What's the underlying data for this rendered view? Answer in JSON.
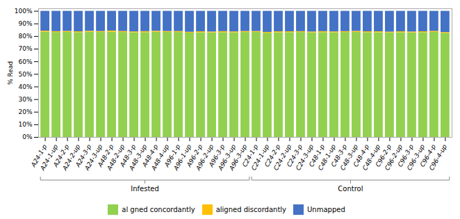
{
  "chart_data": {
    "type": "bar",
    "stacked": true,
    "ylabel": "% Read",
    "categories": [
      "A24-1-p",
      "A24-1-up",
      "A24-2-p",
      "A24-2-up",
      "A24-3-p",
      "A24-3-up",
      "A48-2-p",
      "A48-2-up",
      "A48-3-p",
      "A48-3-up",
      "A48-4-p",
      "A48-4-up",
      "A96-1-p",
      "A96-1-up",
      "A96-2-p",
      "A96-2-up",
      "A96-3-p",
      "A96-3-up",
      "A96-3-up",
      "C24-1-p",
      "C24-1-up",
      "C24-2-p",
      "C24-2-up",
      "C24-3-p",
      "C24-3-up",
      "C48-1-p",
      "C48-1-up",
      "C48-3-p",
      "C48-3-up",
      "C48-4-p",
      "C48-4-up",
      "C96-2-p",
      "C96-2-up",
      "C96-3-p",
      "C96-3-up",
      "C96-4-p",
      "C96-4-up"
    ],
    "series": [
      {
        "name": "al gned concordantly",
        "color": "#92D050",
        "values": [
          83.5,
          83.2,
          83.3,
          83.1,
          83.4,
          83.3,
          83.5,
          83.2,
          83.0,
          83.1,
          83.4,
          83.3,
          83.2,
          82.7,
          83.0,
          82.9,
          83.1,
          83.0,
          83.2,
          83.3,
          82.6,
          83.0,
          83.1,
          83.2,
          82.9,
          83.1,
          83.0,
          83.2,
          83.3,
          83.1,
          83.0,
          82.8,
          83.0,
          82.9,
          83.1,
          83.3,
          82.5
        ]
      },
      {
        "name": "aligned discordantly",
        "color": "#FFC000",
        "values": [
          0.8,
          0.7,
          0.8,
          0.7,
          0.8,
          0.7,
          0.9,
          0.8,
          0.7,
          0.8,
          0.8,
          0.7,
          0.8,
          0.7,
          0.8,
          0.7,
          0.8,
          0.7,
          0.8,
          0.7,
          0.7,
          0.8,
          0.7,
          0.7,
          0.7,
          0.8,
          0.7,
          0.7,
          0.8,
          0.7,
          0.8,
          0.7,
          0.8,
          0.7,
          0.7,
          0.8,
          0.7
        ]
      },
      {
        "name": "Unmapped",
        "color": "#4472C4",
        "values": [
          15.7,
          16.1,
          15.9,
          16.2,
          15.8,
          16.0,
          15.6,
          16.0,
          16.3,
          16.1,
          15.8,
          16.0,
          16.0,
          16.6,
          16.2,
          16.4,
          16.1,
          16.3,
          16.0,
          16.0,
          16.7,
          16.2,
          16.2,
          16.1,
          16.4,
          16.1,
          16.3,
          16.1,
          15.9,
          16.2,
          16.2,
          16.5,
          16.2,
          16.4,
          16.2,
          15.9,
          16.8
        ]
      }
    ],
    "ylim": [
      0,
      102
    ],
    "yticks": [
      {
        "value": 0,
        "label": "0%"
      },
      {
        "value": 10,
        "label": "10%"
      },
      {
        "value": 20,
        "label": "20%"
      },
      {
        "value": 30,
        "label": "30%"
      },
      {
        "value": 40,
        "label": "40%"
      },
      {
        "value": 50,
        "label": "50%"
      },
      {
        "value": 60,
        "label": "60%"
      },
      {
        "value": 70,
        "label": "70%"
      },
      {
        "value": 80,
        "label": "80%"
      },
      {
        "value": 90,
        "label": "90%"
      },
      {
        "value": 100,
        "label": "100%"
      }
    ],
    "annotations": [
      {
        "text": "Infested",
        "from": 0,
        "to": 18
      },
      {
        "text": "Control",
        "from": 19,
        "to": 36
      }
    ],
    "grid": false,
    "legend": "bottom"
  }
}
